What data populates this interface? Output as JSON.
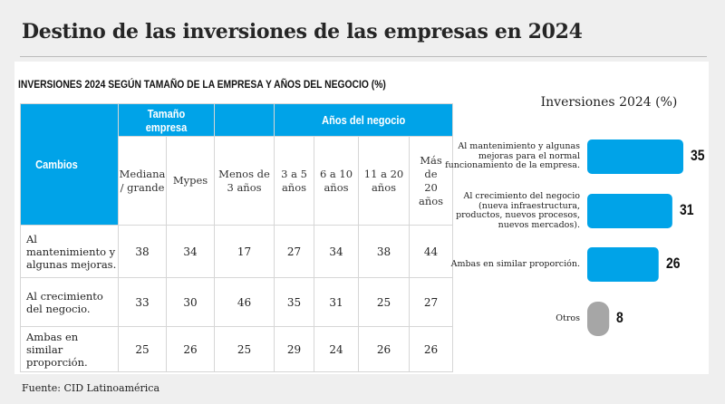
{
  "title": "Destino de las inversiones de las empresas en 2024",
  "table": {
    "title": "INVERSIONES 2024 SEGÚN TAMAÑO DE LA EMPRESA Y AÑOS DEL NEGOCIO (%)",
    "group_headers": {
      "cambios": "Cambios",
      "tamano": "Tamaño empresa",
      "anos": "Años del negocio"
    },
    "columns": [
      "Mediana / grande",
      "Mypes",
      "Menos de 3 años",
      "3 a 5 años",
      "6 a 10 años",
      "11 a 20 años",
      "Más de 20 años"
    ],
    "rows": [
      {
        "label": "Al mantenimiento y algunas mejoras.",
        "values": [
          "38",
          "34",
          "17",
          "27",
          "34",
          "38",
          "44"
        ]
      },
      {
        "label": "Al crecimiento del negocio.",
        "values": [
          "33",
          "30",
          "46",
          "35",
          "31",
          "25",
          "27"
        ]
      },
      {
        "label": "Ambas en similar proporción.",
        "values": [
          "25",
          "26",
          "25",
          "29",
          "24",
          "26",
          "26"
        ]
      }
    ]
  },
  "chart_data": {
    "type": "bar",
    "orientation": "horizontal",
    "title": "Inversiones 2024 (%)",
    "categories": [
      "Al mantenimiento y algunas mejoras para el normal funcionamiento de la empresa.",
      "Al crecimiento del negocio (nueva infraestructura, productos, nuevos procesos, nuevos mercados).",
      "Ambas en similar proporción.",
      "Otros"
    ],
    "values": [
      35,
      31,
      26,
      8
    ],
    "value_labels": [
      "35",
      "31",
      "26",
      "8"
    ],
    "colors": [
      "#00a3e8",
      "#00a3e8",
      "#00a3e8",
      "#a6a6a6"
    ],
    "xlim": [
      0,
      35
    ]
  },
  "source": "Fuente: CID Latinoamérica"
}
